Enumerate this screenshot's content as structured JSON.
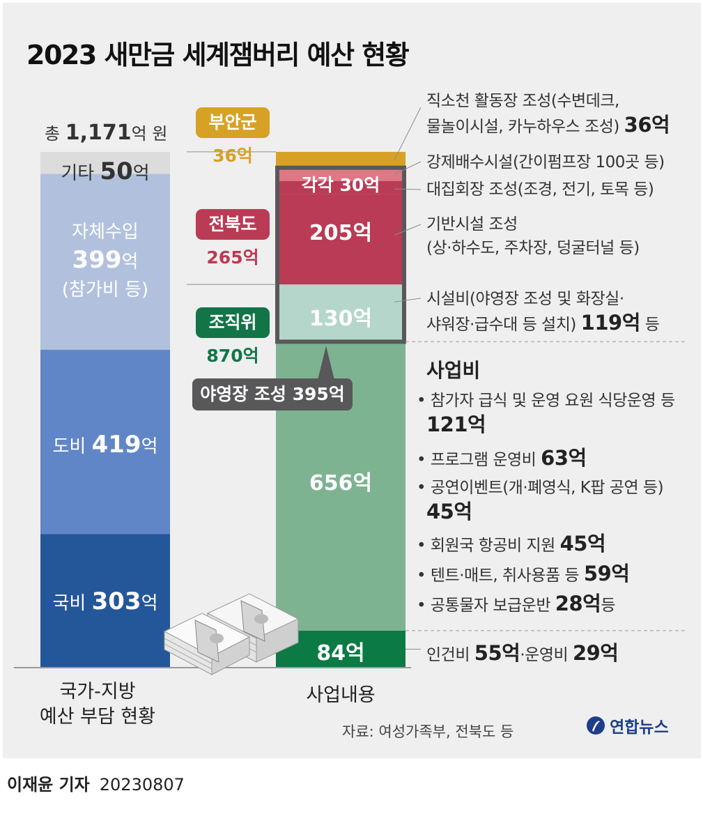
{
  "title": "2023 새만금 세계잼버리 예산 현황",
  "total": {
    "prefix": "총",
    "value": "1,171",
    "unit": "억 원"
  },
  "colors": {
    "buan": "#d7a126",
    "jeonbuk": "#ba3b55",
    "jeonbuk_light": "#de7884",
    "jojikwi": "#137447",
    "misc_bar": "#dcdcdc",
    "own_revenue": "#b1c1dd",
    "province": "#6186c7",
    "national": "#24569a",
    "facility": "#b5d6ca",
    "operation": "#7db391",
    "personnel": "#0b7a45"
  },
  "funders": [
    {
      "name": "부안군",
      "amount": "36억"
    },
    {
      "name": "전북도",
      "amount": "265억"
    },
    {
      "name": "조직위",
      "amount": "870억"
    }
  ],
  "chart_data": [
    {
      "type": "bar",
      "subtype": "stacked",
      "title": "국가-지방 예산 부담 현황",
      "unit": "억",
      "categories": [
        "국가-지방 예산 부담 현황"
      ],
      "series": [
        {
          "name": "국비",
          "values": [
            303
          ]
        },
        {
          "name": "도비",
          "values": [
            419
          ]
        },
        {
          "name": "자체수입",
          "values": [
            399
          ],
          "note": "(참가비 등)"
        },
        {
          "name": "기타",
          "values": [
            50
          ]
        }
      ]
    },
    {
      "type": "bar",
      "subtype": "stacked",
      "title": "사업내용",
      "unit": "억",
      "categories": [
        "사업내용"
      ],
      "series": [
        {
          "name": "84억",
          "values": [
            84
          ]
        },
        {
          "name": "656억",
          "values": [
            656
          ]
        },
        {
          "name": "130억",
          "values": [
            130
          ]
        },
        {
          "name": "205억",
          "values": [
            205
          ]
        },
        {
          "name": "각각 30억",
          "values": [
            30
          ]
        },
        {
          "name": "각각 30억",
          "values": [
            30
          ]
        },
        {
          "name": "36억",
          "values": [
            36
          ]
        }
      ]
    }
  ],
  "left_labels": {
    "misc": {
      "name": "기타",
      "value": "50",
      "unit": "억"
    },
    "own": {
      "name": "자체수입",
      "value": "399",
      "unit": "억",
      "note": "(참가비 등)"
    },
    "province": {
      "name": "도비",
      "value": "419",
      "unit": "억"
    },
    "national": {
      "name": "국비",
      "value": "303",
      "unit": "억"
    }
  },
  "right_labels": {
    "each30": "각각 30억",
    "j205": "205억",
    "f130": "130억",
    "op656": "656억",
    "p84": "84억"
  },
  "callout": "야영장 조성 395억",
  "notes": {
    "n1_line1": "직소천 활동장 조성(수변데크,",
    "n1_line2": "물놀이시설, 카누하우스 조성)",
    "n1_value": "36억",
    "n2": "강제배수시설(간이펌프장 100곳 등)",
    "n3": "대집회장 조성(조경, 전기, 토목 등)",
    "n4_line1": "기반시설 조성",
    "n4_line2": "(상·하수도, 주차장, 덩굴터널 등)",
    "n5_line1": "시설비(야영장 조성 및 화장실·",
    "n5_line2": "샤워장·급수대 등 설치)",
    "n5_value": "119억",
    "n5_suffix": "등"
  },
  "business": {
    "heading": "사업비",
    "items": [
      {
        "text": "참가자 급식 및 운영 요원 식당운영 등",
        "value": "121억",
        "suffix": ""
      },
      {
        "text": "프로그램 운영비",
        "value": "63억",
        "suffix": ""
      },
      {
        "text": "공연이벤트(개·폐영식, K팝 공연 등)",
        "value": "45억",
        "suffix": ""
      },
      {
        "text": "회원국 항공비 지원",
        "value": "45억",
        "suffix": ""
      },
      {
        "text": "텐트·매트, 취사용품 등",
        "value": "59억",
        "suffix": ""
      },
      {
        "text": "공통물자 보급운반",
        "value": "28억",
        "suffix": "등"
      }
    ],
    "bullet": "•"
  },
  "personnel": {
    "a_text": "인건비",
    "a_value": "55억",
    "sep": "·",
    "b_text": "운영비",
    "b_value": "29억"
  },
  "axis": {
    "left_line1": "국가-지방",
    "left_line2": "예산 부담 현황",
    "right": "사업내용"
  },
  "source": "자료: 여성가족부, 전북도 등",
  "logo": "연합뉴스",
  "credit": {
    "name": "이재윤 기자",
    "date": "20230807"
  }
}
